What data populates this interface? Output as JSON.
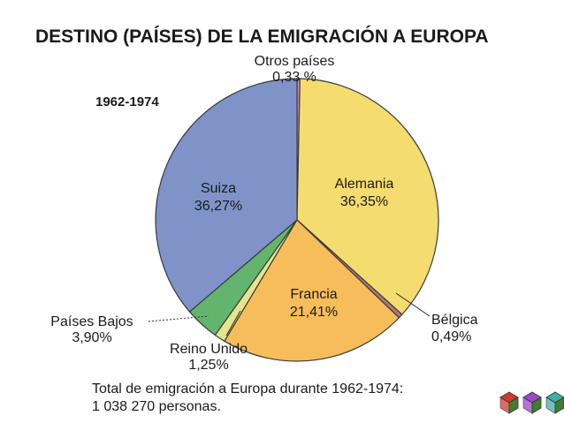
{
  "chart_data": {
    "type": "pie",
    "title": "DESTINO (PAÍSES) DE LA EMIGRACIÓN A EUROPA",
    "subtitle": "1962-1974",
    "slices": [
      {
        "name": "Otros países",
        "value": 0.33,
        "value_label": "0,33 %",
        "color": "#c98fb3"
      },
      {
        "name": "Alemania",
        "value": 36.35,
        "value_label": "36,35%",
        "color": "#f5dc6e"
      },
      {
        "name": "Bélgica",
        "value": 0.49,
        "value_label": "0,49%",
        "color": "#b07a78"
      },
      {
        "name": "Francia",
        "value": 21.41,
        "value_label": "21,41%",
        "color": "#f7bd5a"
      },
      {
        "name": "Reino Unido",
        "value": 1.25,
        "value_label": "1,25%",
        "color": "#e4e58c"
      },
      {
        "name": "Países Bajos",
        "value": 3.9,
        "value_label": "3,90%",
        "color": "#63b56e"
      },
      {
        "name": "Suiza",
        "value": 36.27,
        "value_label": "36,27%",
        "color": "#7f93c9"
      }
    ],
    "note_line1": "Total de emigración a Europa durante 1962-1974:",
    "note_line2": "1 038 270 personas."
  },
  "decor": {
    "icons": [
      {
        "name": "red-cube-icon",
        "color": "#d23a2a"
      },
      {
        "name": "purple-cube-icon",
        "color": "#9a48c6"
      },
      {
        "name": "teal-cube-icon",
        "color": "#3ab0a6"
      }
    ]
  }
}
